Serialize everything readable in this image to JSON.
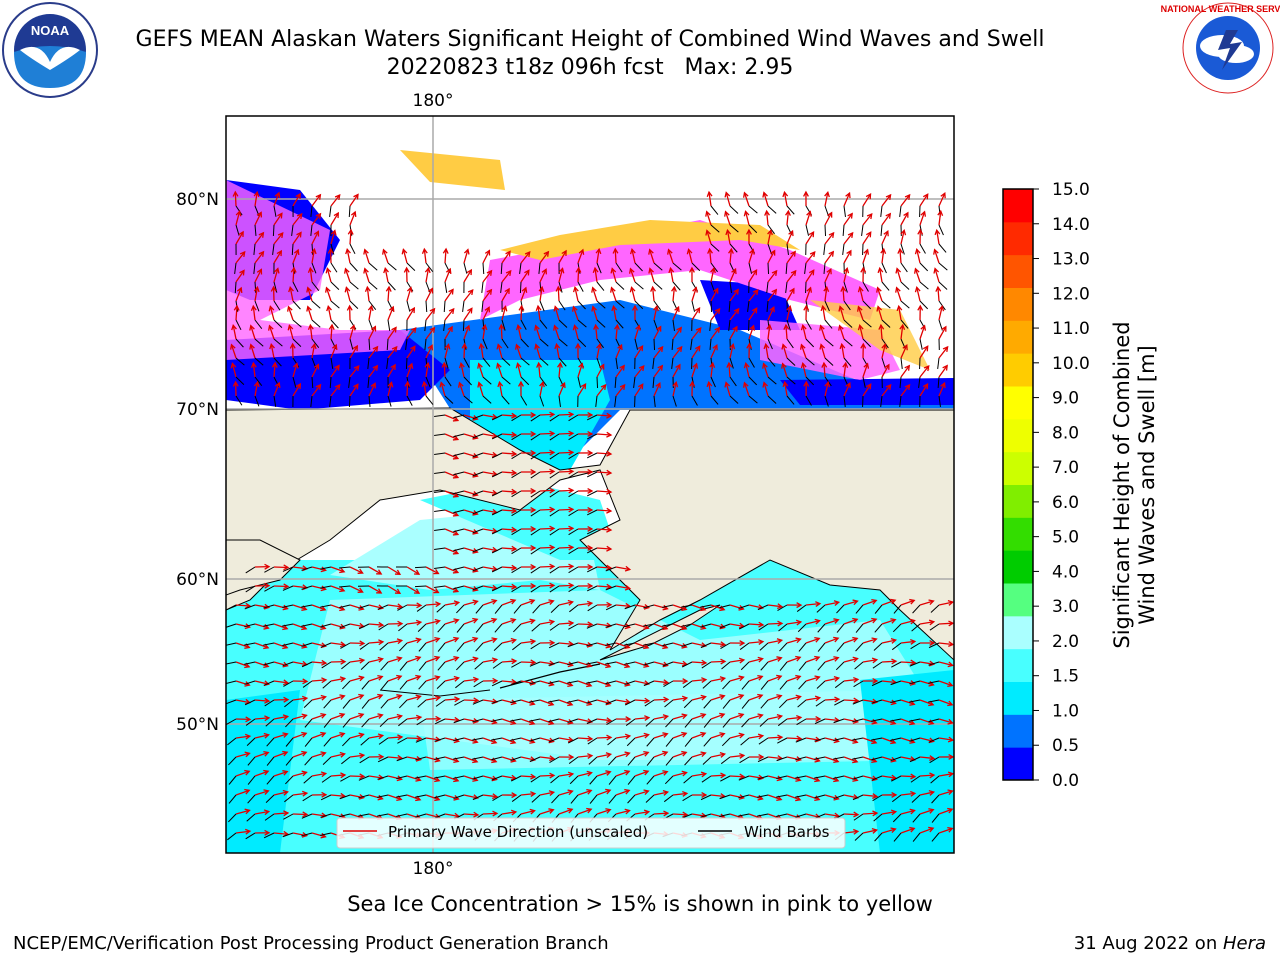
{
  "title": {
    "line1": "GEFS MEAN Alaskan Waters Significant Height of Combined Wind Waves and Swell",
    "line2": "20220823 t18z 096h fcst   Max: 2.95"
  },
  "logos": {
    "left": {
      "icon": "noaa-logo",
      "text": "NOAA"
    },
    "right": {
      "icon": "national-weather-service-logo",
      "text": "NATIONAL WEATHER SERVICE"
    }
  },
  "map": {
    "projection_label_top": "180°",
    "projection_label_bottom": "180°",
    "lat_labels": [
      "80°N",
      "70°N",
      "60°N",
      "50°N"
    ],
    "land_color": "#efecdc",
    "legend": {
      "wave_direction": "Primary Wave Direction (unscaled)",
      "wind_barbs": "Wind Barbs"
    }
  },
  "colorbar": {
    "label_line1": "Significant Height of Combined",
    "label_line2": "Wind Waves and Swell [m]",
    "ticks": [
      "0.0",
      "0.5",
      "1.0",
      "1.5",
      "2.0",
      "3.0",
      "4.0",
      "5.0",
      "6.0",
      "7.0",
      "8.0",
      "9.0",
      "10.0",
      "11.0",
      "12.0",
      "13.0",
      "14.0",
      "15.0"
    ],
    "colors": [
      "#0000ff",
      "#0073ff",
      "#00ebff",
      "#48ffff",
      "#aaffff",
      "#55ff80",
      "#00cc00",
      "#33dd00",
      "#80ee00",
      "#ccff00",
      "#eeff00",
      "#ffff00",
      "#ffcc00",
      "#ffaa00",
      "#ff8800",
      "#ff5500",
      "#ff2a00",
      "#ff0000"
    ]
  },
  "footer": {
    "note": "Sea Ice Concentration > 15% is shown in pink to yellow",
    "credit_left": "NCEP/EMC/Verification Post Processing Product Generation Branch",
    "credit_date": "31 Aug 2022 on ",
    "credit_machine": "Hera"
  }
}
